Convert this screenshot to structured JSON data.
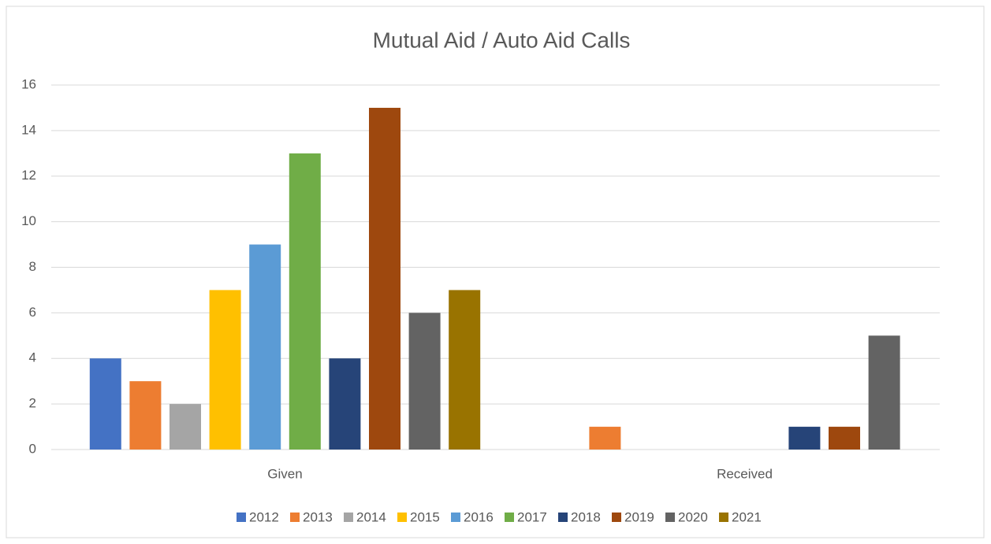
{
  "chart_data": {
    "type": "bar",
    "title": "Mutual Aid / Auto Aid Calls",
    "categories": [
      "Given",
      "Received"
    ],
    "series": [
      {
        "name": "2012",
        "color": "#4472c4",
        "values": [
          4,
          0
        ]
      },
      {
        "name": "2013",
        "color": "#ed7d31",
        "values": [
          3,
          1
        ]
      },
      {
        "name": "2014",
        "color": "#a5a5a5",
        "values": [
          2,
          0
        ]
      },
      {
        "name": "2015",
        "color": "#ffc000",
        "values": [
          7,
          0
        ]
      },
      {
        "name": "2016",
        "color": "#5b9bd5",
        "values": [
          9,
          0
        ]
      },
      {
        "name": "2017",
        "color": "#70ad47",
        "values": [
          13,
          0
        ]
      },
      {
        "name": "2018",
        "color": "#264478",
        "values": [
          4,
          1
        ]
      },
      {
        "name": "2019",
        "color": "#9e480e",
        "values": [
          15,
          1
        ]
      },
      {
        "name": "2020",
        "color": "#636363",
        "values": [
          6,
          5
        ]
      },
      {
        "name": "2021",
        "color": "#997300",
        "values": [
          7,
          0
        ]
      }
    ],
    "ylim": [
      0,
      16
    ],
    "yticks": [
      0,
      2,
      4,
      6,
      8,
      10,
      12,
      14,
      16
    ],
    "grid": true,
    "legend": "bottom"
  }
}
